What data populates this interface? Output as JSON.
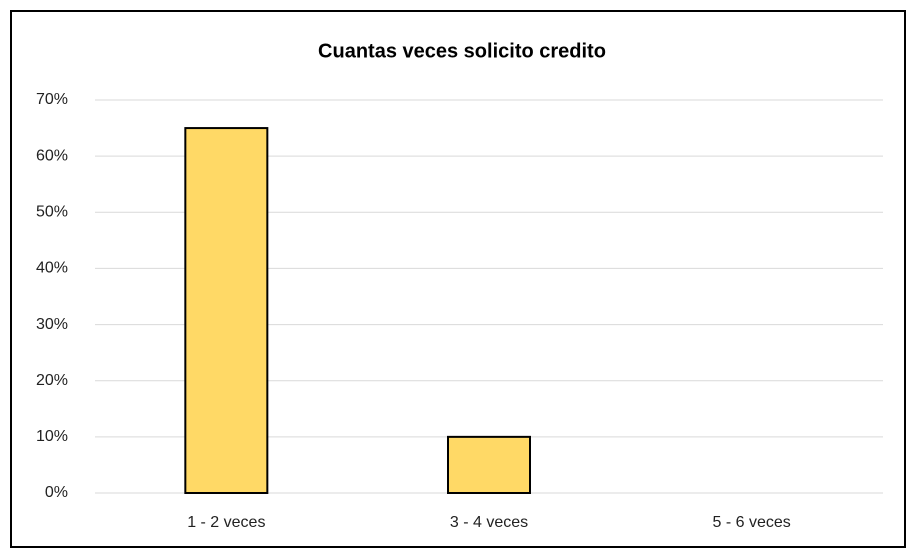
{
  "chart_data": {
    "type": "bar",
    "title": "Cuantas veces solicito credito",
    "categories": [
      "1 - 2 veces",
      "3 - 4 veces",
      "5 - 6 veces"
    ],
    "values": [
      65,
      10,
      0
    ],
    "color": "#FFD966",
    "ylim": [
      0,
      70
    ],
    "yticks": [
      {
        "value": 0,
        "label": "0%"
      },
      {
        "value": 10,
        "label": "10%"
      },
      {
        "value": 20,
        "label": "20%"
      },
      {
        "value": 30,
        "label": "30%"
      },
      {
        "value": 40,
        "label": "40%"
      },
      {
        "value": 50,
        "label": "50%"
      },
      {
        "value": 60,
        "label": "60%"
      },
      {
        "value": 70,
        "label": "70%"
      }
    ],
    "grid": true
  }
}
